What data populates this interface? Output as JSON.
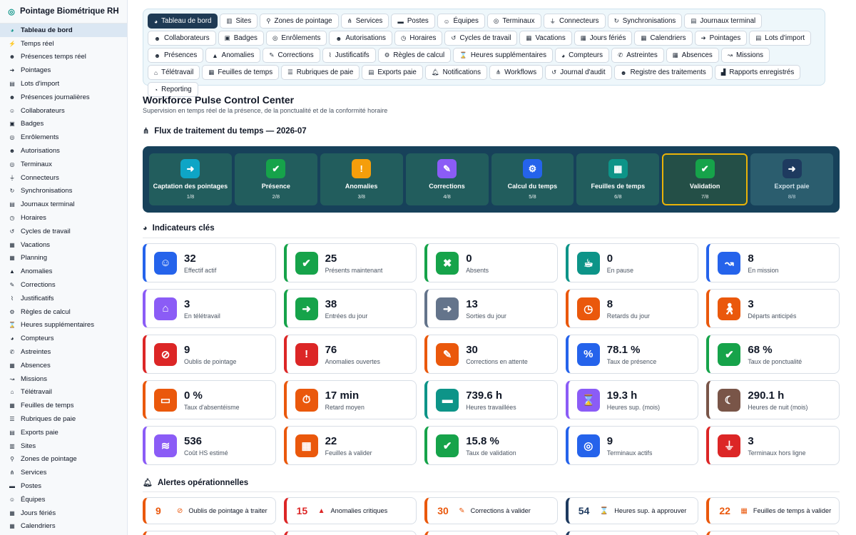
{
  "app": {
    "title": "Pointage Biométrique RH"
  },
  "sidebar": {
    "items": [
      {
        "label": "Tableau de bord",
        "icon": "gauge-icon",
        "glyph": "◕",
        "active": true
      },
      {
        "label": "Temps réel",
        "icon": "bolt-icon",
        "glyph": "⚡"
      },
      {
        "label": "Présences temps réel",
        "icon": "user-check-icon",
        "glyph": "☻"
      },
      {
        "label": "Pointages",
        "icon": "clock-in-icon",
        "glyph": "➜"
      },
      {
        "label": "Lots d'import",
        "icon": "file-import-icon",
        "glyph": "▤"
      },
      {
        "label": "Présences journalières",
        "icon": "user-check-icon",
        "glyph": "☻"
      },
      {
        "label": "Collaborateurs",
        "icon": "users-icon",
        "glyph": "☺"
      },
      {
        "label": "Badges",
        "icon": "id-badge-icon",
        "glyph": "▣"
      },
      {
        "label": "Enrôlements",
        "icon": "fingerprint-icon",
        "glyph": "◎"
      },
      {
        "label": "Autorisations",
        "icon": "user-lock-icon",
        "glyph": "☻"
      },
      {
        "label": "Terminaux",
        "icon": "fingerprint-icon",
        "glyph": "◎"
      },
      {
        "label": "Connecteurs",
        "icon": "plug-icon",
        "glyph": "⏚"
      },
      {
        "label": "Synchronisations",
        "icon": "sync-icon",
        "glyph": "↻"
      },
      {
        "label": "Journaux terminal",
        "icon": "log-icon",
        "glyph": "▤"
      },
      {
        "label": "Horaires",
        "icon": "clock-icon",
        "glyph": "◷"
      },
      {
        "label": "Cycles de travail",
        "icon": "cycle-icon",
        "glyph": "↺"
      },
      {
        "label": "Vacations",
        "icon": "calendar-icon",
        "glyph": "▦"
      },
      {
        "label": "Planning",
        "icon": "calendar-icon",
        "glyph": "▦"
      },
      {
        "label": "Anomalies",
        "icon": "warning-icon",
        "glyph": "▲"
      },
      {
        "label": "Corrections",
        "icon": "edit-icon",
        "glyph": "✎"
      },
      {
        "label": "Justificatifs",
        "icon": "paperclip-icon",
        "glyph": "⌇"
      },
      {
        "label": "Règles de calcul",
        "icon": "cogs-icon",
        "glyph": "⚙"
      },
      {
        "label": "Heures supplémentaires",
        "icon": "hourglass-icon",
        "glyph": "⌛"
      },
      {
        "label": "Compteurs",
        "icon": "gauge-icon",
        "glyph": "◕"
      },
      {
        "label": "Astreintes",
        "icon": "phone-icon",
        "glyph": "✆"
      },
      {
        "label": "Absences",
        "icon": "calendar-x-icon",
        "glyph": "▦"
      },
      {
        "label": "Missions",
        "icon": "route-icon",
        "glyph": "↝"
      },
      {
        "label": "Télétravail",
        "icon": "home-laptop-icon",
        "glyph": "⌂"
      },
      {
        "label": "Feuilles de temps",
        "icon": "table-icon",
        "glyph": "▦"
      },
      {
        "label": "Rubriques de paie",
        "icon": "list-icon",
        "glyph": "☰"
      },
      {
        "label": "Exports paie",
        "icon": "file-export-icon",
        "glyph": "▤"
      },
      {
        "label": "Sites",
        "icon": "building-icon",
        "glyph": "▥"
      },
      {
        "label": "Zones de pointage",
        "icon": "map-pin-icon",
        "glyph": "⚲"
      },
      {
        "label": "Services",
        "icon": "sitemap-icon",
        "glyph": "⋔"
      },
      {
        "label": "Postes",
        "icon": "briefcase-icon",
        "glyph": "▬"
      },
      {
        "label": "Équipes",
        "icon": "users-icon",
        "glyph": "☺"
      },
      {
        "label": "Jours fériés",
        "icon": "calendar-icon",
        "glyph": "▦"
      },
      {
        "label": "Calendriers",
        "icon": "calendar-icon",
        "glyph": "▦"
      }
    ]
  },
  "tabs": [
    {
      "label": "Tableau de bord",
      "icon": "gauge-icon",
      "glyph": "◕",
      "active": true
    },
    {
      "label": "Sites",
      "icon": "building-icon",
      "glyph": "▥"
    },
    {
      "label": "Zones de pointage",
      "icon": "map-pin-icon",
      "glyph": "⚲"
    },
    {
      "label": "Services",
      "icon": "sitemap-icon",
      "glyph": "⋔"
    },
    {
      "label": "Postes",
      "icon": "briefcase-icon",
      "glyph": "▬"
    },
    {
      "label": "Équipes",
      "icon": "users-icon",
      "glyph": "☺"
    },
    {
      "label": "Terminaux",
      "icon": "fingerprint-icon",
      "glyph": "◎"
    },
    {
      "label": "Connecteurs",
      "icon": "plug-icon",
      "glyph": "⏚"
    },
    {
      "label": "Synchronisations",
      "icon": "sync-icon",
      "glyph": "↻"
    },
    {
      "label": "Journaux terminal",
      "icon": "log-icon",
      "glyph": "▤"
    },
    {
      "label": "Collaborateurs",
      "icon": "user-icon",
      "glyph": "☻"
    },
    {
      "label": "Badges",
      "icon": "id-badge-icon",
      "glyph": "▣"
    },
    {
      "label": "Enrôlements",
      "icon": "fingerprint-icon",
      "glyph": "◎"
    },
    {
      "label": "Autorisations",
      "icon": "user-lock-icon",
      "glyph": "☻"
    },
    {
      "label": "Horaires",
      "icon": "clock-icon",
      "glyph": "◷"
    },
    {
      "label": "Cycles de travail",
      "icon": "cycle-icon",
      "glyph": "↺"
    },
    {
      "label": "Vacations",
      "icon": "calendar-icon",
      "glyph": "▦"
    },
    {
      "label": "Jours fériés",
      "icon": "calendar-icon",
      "glyph": "▦"
    },
    {
      "label": "Calendriers",
      "icon": "calendar-icon",
      "glyph": "▦"
    },
    {
      "label": "Pointages",
      "icon": "clock-in-icon",
      "glyph": "➜"
    },
    {
      "label": "Lots d'import",
      "icon": "file-import-icon",
      "glyph": "▤"
    },
    {
      "label": "Présences",
      "icon": "user-check-icon",
      "glyph": "☻"
    },
    {
      "label": "Anomalies",
      "icon": "warning-icon",
      "glyph": "▲"
    },
    {
      "label": "Corrections",
      "icon": "edit-icon",
      "glyph": "✎"
    },
    {
      "label": "Justificatifs",
      "icon": "paperclip-icon",
      "glyph": "⌇"
    },
    {
      "label": "Règles de calcul",
      "icon": "cogs-icon",
      "glyph": "⚙"
    },
    {
      "label": "Heures supplémentaires",
      "icon": "hourglass-icon",
      "glyph": "⌛"
    },
    {
      "label": "Compteurs",
      "icon": "gauge-icon",
      "glyph": "◕"
    },
    {
      "label": "Astreintes",
      "icon": "phone-icon",
      "glyph": "✆"
    },
    {
      "label": "Absences",
      "icon": "calendar-x-icon",
      "glyph": "▦"
    },
    {
      "label": "Missions",
      "icon": "route-icon",
      "glyph": "↝"
    },
    {
      "label": "Télétravail",
      "icon": "home-laptop-icon",
      "glyph": "⌂"
    },
    {
      "label": "Feuilles de temps",
      "icon": "table-icon",
      "glyph": "▦"
    },
    {
      "label": "Rubriques de paie",
      "icon": "list-icon",
      "glyph": "☰"
    },
    {
      "label": "Exports paie",
      "icon": "file-export-icon",
      "glyph": "▤"
    },
    {
      "label": "Notifications",
      "icon": "bell-icon",
      "glyph": "🔔︎"
    },
    {
      "label": "Workflows",
      "icon": "workflow-icon",
      "glyph": "⋔"
    },
    {
      "label": "Journal d'audit",
      "icon": "history-icon",
      "glyph": "↺"
    },
    {
      "label": "Registre des traitements",
      "icon": "user-shield-icon",
      "glyph": "☻"
    },
    {
      "label": "Rapports enregistrés",
      "icon": "chart-icon",
      "glyph": "▟"
    },
    {
      "label": "Reporting",
      "icon": "pie-chart-icon",
      "glyph": "◔"
    }
  ],
  "header": {
    "title": "Workforce Pulse Control Center",
    "subtitle": "Supervision en temps réel de la présence, de la ponctualité et de la conformité horaire"
  },
  "pipeline": {
    "title": "Flux de traitement du temps — 2026-07",
    "icon": "flow-icon",
    "stages": [
      {
        "label": "Captation des pointages",
        "step": "1/8",
        "icon": "sign-in-icon",
        "glyph": "➜",
        "color": "#0ea5c6",
        "state": "done"
      },
      {
        "label": "Présence",
        "step": "2/8",
        "icon": "user-check-icon",
        "glyph": "✔",
        "color": "#16a34a",
        "state": "done"
      },
      {
        "label": "Anomalies",
        "step": "3/8",
        "icon": "warning-icon",
        "glyph": "!",
        "color": "#f59e0b",
        "state": "done"
      },
      {
        "label": "Corrections",
        "step": "4/8",
        "icon": "edit-icon",
        "glyph": "✎",
        "color": "#8b5cf6",
        "state": "done"
      },
      {
        "label": "Calcul du temps",
        "step": "5/8",
        "icon": "cogs-icon",
        "glyph": "⚙",
        "color": "#2563eb",
        "state": "done"
      },
      {
        "label": "Feuilles de temps",
        "step": "6/8",
        "icon": "table-icon",
        "glyph": "▦",
        "color": "#0d9488",
        "state": "done"
      },
      {
        "label": "Validation",
        "step": "7/8",
        "icon": "check-double-icon",
        "glyph": "✔",
        "color": "#16a34a",
        "state": "current"
      },
      {
        "label": "Export paie",
        "step": "8/8",
        "icon": "file-export-icon",
        "glyph": "➜",
        "color": "#1e3a5f",
        "state": "pending"
      }
    ]
  },
  "kpis": {
    "title": "Indicateurs clés",
    "icon": "gauge-icon",
    "items": [
      {
        "value": "32",
        "label": "Effectif actif",
        "icon": "users-icon",
        "glyph": "☺",
        "color": "#2563eb"
      },
      {
        "value": "25",
        "label": "Présents maintenant",
        "icon": "user-check-icon",
        "glyph": "✔",
        "color": "#16a34a"
      },
      {
        "value": "0",
        "label": "Absents",
        "icon": "user-times-icon",
        "glyph": "✖",
        "color": "#16a34a"
      },
      {
        "value": "0",
        "label": "En pause",
        "icon": "coffee-icon",
        "glyph": "☕︎",
        "color": "#0d9488"
      },
      {
        "value": "8",
        "label": "En mission",
        "icon": "route-icon",
        "glyph": "↝",
        "color": "#2563eb"
      },
      {
        "value": "3",
        "label": "En télétravail",
        "icon": "home-laptop-icon",
        "glyph": "⌂",
        "color": "#8b5cf6"
      },
      {
        "value": "38",
        "label": "Entrées du jour",
        "icon": "sign-in-icon",
        "glyph": "➜",
        "color": "#16a34a"
      },
      {
        "value": "13",
        "label": "Sorties du jour",
        "icon": "sign-out-icon",
        "glyph": "➜",
        "color": "#64748b"
      },
      {
        "value": "8",
        "label": "Retards du jour",
        "icon": "clock-icon",
        "glyph": "◷",
        "color": "#ea580c"
      },
      {
        "value": "3",
        "label": "Départs anticipés",
        "icon": "walking-icon",
        "glyph": "🚶︎",
        "color": "#ea580c"
      },
      {
        "value": "9",
        "label": "Oublis de pointage",
        "icon": "user-slash-icon",
        "glyph": "⊘",
        "color": "#dc2626"
      },
      {
        "value": "76",
        "label": "Anomalies ouvertes",
        "icon": "warning-icon",
        "glyph": "!",
        "color": "#dc2626"
      },
      {
        "value": "30",
        "label": "Corrections en attente",
        "icon": "edit-icon",
        "glyph": "✎",
        "color": "#ea580c"
      },
      {
        "value": "78.1 %",
        "label": "Taux de présence",
        "icon": "percent-icon",
        "glyph": "%",
        "color": "#2563eb"
      },
      {
        "value": "68 %",
        "label": "Taux de ponctualité",
        "icon": "check-circle-icon",
        "glyph": "✔",
        "color": "#16a34a"
      },
      {
        "value": "0 %",
        "label": "Taux d'absentéisme",
        "icon": "calendar-minus-icon",
        "glyph": "▭",
        "color": "#ea580c"
      },
      {
        "value": "17 min",
        "label": "Retard moyen",
        "icon": "stopwatch-icon",
        "glyph": "⏱︎",
        "color": "#ea580c"
      },
      {
        "value": "739.6 h",
        "label": "Heures travaillées",
        "icon": "business-time-icon",
        "glyph": "▬",
        "color": "#0d9488"
      },
      {
        "value": "19.3 h",
        "label": "Heures sup. (mois)",
        "icon": "hourglass-icon",
        "glyph": "⌛",
        "color": "#8b5cf6"
      },
      {
        "value": "290.1 h",
        "label": "Heures de nuit (mois)",
        "icon": "moon-icon",
        "glyph": "☾",
        "color": "#795548"
      },
      {
        "value": "536",
        "label": "Coût HS estimé",
        "icon": "coins-icon",
        "glyph": "≋",
        "color": "#8b5cf6"
      },
      {
        "value": "22",
        "label": "Feuilles à valider",
        "icon": "table-icon",
        "glyph": "▦",
        "color": "#ea580c"
      },
      {
        "value": "15.8 %",
        "label": "Taux de validation",
        "icon": "check-double-icon",
        "glyph": "✔",
        "color": "#16a34a"
      },
      {
        "value": "9",
        "label": "Terminaux actifs",
        "icon": "fingerprint-icon",
        "glyph": "◎",
        "color": "#2563eb"
      },
      {
        "value": "3",
        "label": "Terminaux hors ligne",
        "icon": "plug-icon",
        "glyph": "⏚",
        "color": "#dc2626"
      }
    ]
  },
  "alerts": {
    "title": "Alertes opérationnelles",
    "icon": "bell-icon",
    "items": [
      {
        "count": "9",
        "label": "Oublis de pointage à traiter",
        "icon": "user-slash-icon",
        "glyph": "⊘",
        "color": "#ea580c"
      },
      {
        "count": "15",
        "label": "Anomalies critiques",
        "icon": "warning-icon",
        "glyph": "▲",
        "color": "#dc2626"
      },
      {
        "count": "30",
        "label": "Corrections à valider",
        "icon": "edit-icon",
        "glyph": "✎",
        "color": "#ea580c"
      },
      {
        "count": "54",
        "label": "Heures sup. à approuver",
        "icon": "hourglass-icon",
        "glyph": "⌛",
        "color": "#1e3a5f"
      },
      {
        "count": "22",
        "label": "Feuilles de temps à valider",
        "icon": "table-icon",
        "glyph": "▦",
        "color": "#ea580c"
      }
    ]
  }
}
